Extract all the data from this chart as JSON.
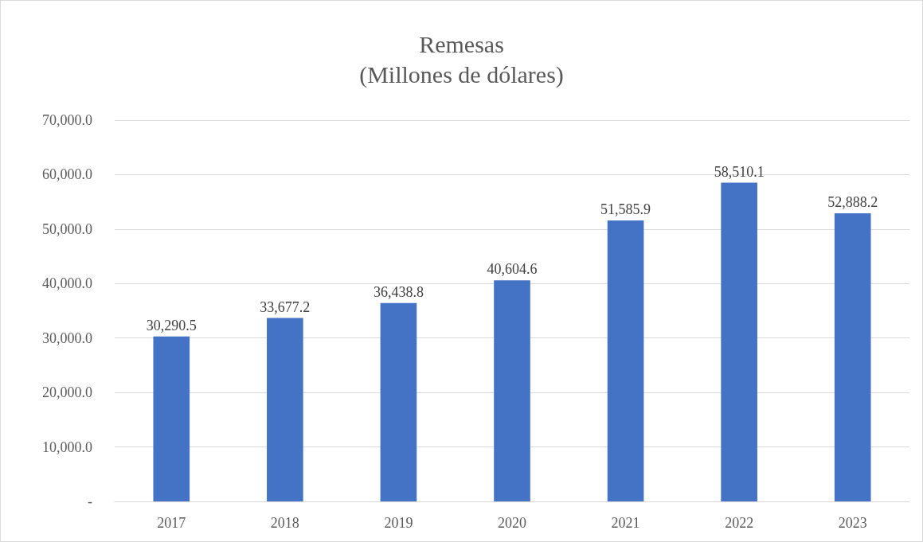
{
  "chart_data": {
    "type": "bar",
    "title": "Remesas\n(Millones de dólares)",
    "categories": [
      "2017",
      "2018",
      "2019",
      "2020",
      "2021",
      "2022",
      "2023"
    ],
    "values": [
      30290.5,
      33677.2,
      36438.8,
      40604.6,
      51585.9,
      58510.1,
      52888.2
    ],
    "value_labels": [
      "30,290.5",
      "33,677.2",
      "36,438.8",
      "40,604.6",
      "51,585.9",
      "58,510.1",
      "52,888.2"
    ],
    "color": "#4472c4",
    "ylim": [
      0,
      70000
    ],
    "yticks": [
      {
        "value": 0,
        "label": "-"
      },
      {
        "value": 10000,
        "label": "10,000.0"
      },
      {
        "value": 20000,
        "label": "20,000.0"
      },
      {
        "value": 30000,
        "label": "30,000.0"
      },
      {
        "value": 40000,
        "label": "40,000.0"
      },
      {
        "value": 50000,
        "label": "50,000.0"
      },
      {
        "value": 60000,
        "label": "60,000.0"
      },
      {
        "value": 70000,
        "label": "70,000.0"
      }
    ],
    "grid": "y"
  }
}
